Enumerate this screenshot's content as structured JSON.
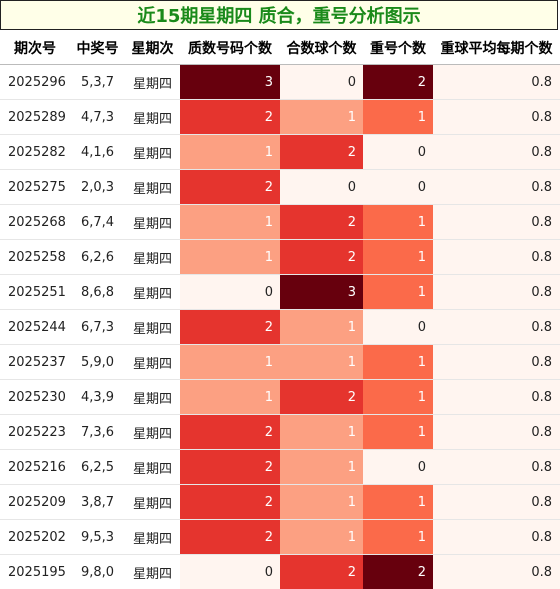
{
  "title": "近15期星期四 质合，重号分析图示",
  "columns": [
    "期次号",
    "中奖号",
    "星期次",
    "质数号码个数",
    "合数球个数",
    "重号个数",
    "重球平均每期个数"
  ],
  "colors": {
    "title_text": "#1a8a1a",
    "title_bg": "#ffffe8",
    "heat_0": "#fff5f0",
    "heat_1": "#fca082",
    "heat_2": "#e5342e",
    "heat_3": "#67000d",
    "redo_1": "#fb6a4a",
    "redo_2": "#67000d"
  },
  "chart_data": {
    "type": "table",
    "title": "近15期星期四 质合，重号分析图示",
    "columns": [
      "期次号",
      "中奖号",
      "星期次",
      "质数号码个数",
      "合数球个数",
      "重号个数",
      "重球平均每期个数"
    ],
    "rows": [
      {
        "period": "2025296",
        "digits": "5,3,7",
        "weekday": "星期四",
        "prime": 3,
        "composite": 0,
        "repeat": 2,
        "avg": "0.8"
      },
      {
        "period": "2025289",
        "digits": "4,7,3",
        "weekday": "星期四",
        "prime": 2,
        "composite": 1,
        "repeat": 1,
        "avg": "0.8"
      },
      {
        "period": "2025282",
        "digits": "4,1,6",
        "weekday": "星期四",
        "prime": 1,
        "composite": 2,
        "repeat": 0,
        "avg": "0.8"
      },
      {
        "period": "2025275",
        "digits": "2,0,3",
        "weekday": "星期四",
        "prime": 2,
        "composite": 0,
        "repeat": 0,
        "avg": "0.8"
      },
      {
        "period": "2025268",
        "digits": "6,7,4",
        "weekday": "星期四",
        "prime": 1,
        "composite": 2,
        "repeat": 1,
        "avg": "0.8"
      },
      {
        "period": "2025258",
        "digits": "6,2,6",
        "weekday": "星期四",
        "prime": 1,
        "composite": 2,
        "repeat": 1,
        "avg": "0.8"
      },
      {
        "period": "2025251",
        "digits": "8,6,8",
        "weekday": "星期四",
        "prime": 0,
        "composite": 3,
        "repeat": 1,
        "avg": "0.8"
      },
      {
        "period": "2025244",
        "digits": "6,7,3",
        "weekday": "星期四",
        "prime": 2,
        "composite": 1,
        "repeat": 0,
        "avg": "0.8"
      },
      {
        "period": "2025237",
        "digits": "5,9,0",
        "weekday": "星期四",
        "prime": 1,
        "composite": 1,
        "repeat": 1,
        "avg": "0.8"
      },
      {
        "period": "2025230",
        "digits": "4,3,9",
        "weekday": "星期四",
        "prime": 1,
        "composite": 2,
        "repeat": 1,
        "avg": "0.8"
      },
      {
        "period": "2025223",
        "digits": "7,3,6",
        "weekday": "星期四",
        "prime": 2,
        "composite": 1,
        "repeat": 1,
        "avg": "0.8"
      },
      {
        "period": "2025216",
        "digits": "6,2,5",
        "weekday": "星期四",
        "prime": 2,
        "composite": 1,
        "repeat": 0,
        "avg": "0.8"
      },
      {
        "period": "2025209",
        "digits": "3,8,7",
        "weekday": "星期四",
        "prime": 2,
        "composite": 1,
        "repeat": 1,
        "avg": "0.8"
      },
      {
        "period": "2025202",
        "digits": "9,5,3",
        "weekday": "星期四",
        "prime": 2,
        "composite": 1,
        "repeat": 1,
        "avg": "0.8"
      },
      {
        "period": "2025195",
        "digits": "9,8,0",
        "weekday": "星期四",
        "prime": 0,
        "composite": 2,
        "repeat": 2,
        "avg": "0.8"
      }
    ]
  }
}
